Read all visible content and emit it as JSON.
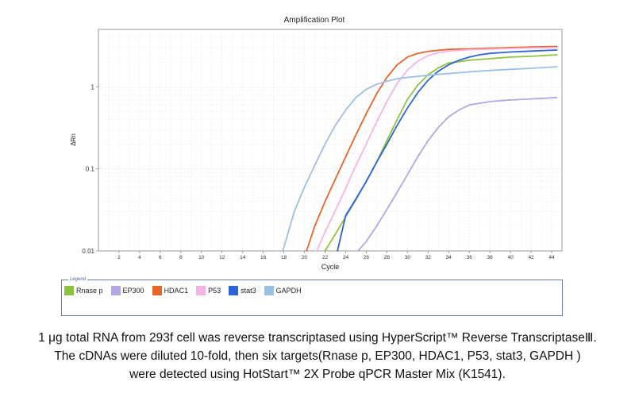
{
  "chart_data": {
    "type": "line",
    "title": "Amplification Plot",
    "xlabel": "Cycle",
    "ylabel": "ΔRn",
    "yscale": "log",
    "xlim": [
      0,
      45
    ],
    "ylim": [
      0.01,
      5
    ],
    "x_ticks": [
      "2",
      "4",
      "6",
      "8",
      "10",
      "12",
      "14",
      "16",
      "18",
      "20",
      "22",
      "24",
      "26",
      "28",
      "30",
      "32",
      "34",
      "36",
      "38",
      "40",
      "42",
      "44"
    ],
    "y_ticks": [
      {
        "value": 0.01,
        "label": "0.01"
      },
      {
        "value": 0.1,
        "label": "0.1"
      },
      {
        "value": 1,
        "label": "1"
      }
    ],
    "series": [
      {
        "name": "Rnase p",
        "color": "#8dc43f",
        "x": [
          22,
          23,
          24,
          25,
          26,
          27,
          28,
          29,
          30,
          31,
          32,
          33,
          34,
          36,
          38,
          40,
          42,
          44.5
        ],
        "y": [
          0.01,
          0.016,
          0.026,
          0.042,
          0.07,
          0.12,
          0.22,
          0.4,
          0.7,
          1.05,
          1.4,
          1.7,
          1.95,
          2.1,
          2.2,
          2.3,
          2.35,
          2.45
        ]
      },
      {
        "name": "EP300",
        "color": "#b3a6e3",
        "x": [
          25.2,
          26,
          27,
          28,
          29,
          30,
          31,
          32,
          33,
          34,
          35,
          36,
          38,
          40,
          42,
          44.5
        ],
        "y": [
          0.01,
          0.013,
          0.02,
          0.032,
          0.052,
          0.085,
          0.14,
          0.22,
          0.32,
          0.43,
          0.52,
          0.6,
          0.66,
          0.69,
          0.71,
          0.74
        ]
      },
      {
        "name": "HDAC1",
        "color": "#e8652a",
        "x": [
          20.2,
          21,
          22,
          23,
          24,
          25,
          26,
          27,
          28,
          29,
          30,
          31,
          32,
          33,
          34,
          36,
          38,
          40,
          42,
          44.5
        ],
        "y": [
          0.01,
          0.02,
          0.04,
          0.075,
          0.14,
          0.26,
          0.47,
          0.82,
          1.3,
          1.85,
          2.3,
          2.55,
          2.7,
          2.78,
          2.85,
          2.9,
          2.95,
          3.0,
          3.05,
          3.1
        ]
      },
      {
        "name": "P53",
        "color": "#f4b4e4",
        "x": [
          21.2,
          22,
          23,
          24,
          25,
          26,
          27,
          28,
          29,
          30,
          31,
          32,
          33,
          34,
          36,
          38,
          40,
          42,
          44.5
        ],
        "y": [
          0.01,
          0.017,
          0.031,
          0.058,
          0.11,
          0.2,
          0.37,
          0.66,
          1.1,
          1.6,
          2.05,
          2.4,
          2.6,
          2.72,
          2.82,
          2.88,
          2.93,
          2.97,
          3.0
        ]
      },
      {
        "name": "stat3",
        "color": "#2f63d8",
        "x": [
          23.2,
          24,
          25,
          26,
          27,
          28,
          29,
          30,
          31,
          32,
          33,
          34,
          35,
          36,
          37,
          38,
          40,
          42,
          44.5
        ],
        "y": [
          0.01,
          0.027,
          0.043,
          0.07,
          0.12,
          0.2,
          0.34,
          0.55,
          0.85,
          1.2,
          1.55,
          1.85,
          2.1,
          2.3,
          2.45,
          2.55,
          2.65,
          2.72,
          2.8
        ]
      },
      {
        "name": "GAPDH",
        "color": "#9bc0e2",
        "x": [
          17.9,
          18.5,
          19,
          20,
          21,
          22,
          23,
          24,
          25,
          26,
          27,
          28,
          29,
          30,
          32,
          34,
          36,
          38,
          40,
          42,
          44.5
        ],
        "y": [
          0.01,
          0.018,
          0.03,
          0.06,
          0.11,
          0.2,
          0.34,
          0.52,
          0.74,
          0.93,
          1.07,
          1.17,
          1.25,
          1.3,
          1.38,
          1.45,
          1.52,
          1.58,
          1.63,
          1.68,
          1.75
        ]
      }
    ]
  },
  "legend": {
    "title": "Legend",
    "items": [
      {
        "label": "Rnase p",
        "color": "#8dc43f"
      },
      {
        "label": "EP300",
        "color": "#b3a6e3"
      },
      {
        "label": "HDAC1",
        "color": "#e8652a"
      },
      {
        "label": "P53",
        "color": "#f4b4e4"
      },
      {
        "label": "stat3",
        "color": "#2f63d8"
      },
      {
        "label": "GAPDH",
        "color": "#9bc0e2"
      }
    ]
  },
  "caption": {
    "line1": "1 μg total RNA from 293f cell was reverse transcriptased using HyperScript™ Reverse TranscriptaseⅢ.",
    "line2": "The cDNAs were diluted 10-fold, then six targets(Rnase p, EP300, HDAC1, P53, stat3, GAPDH )",
    "line3": "were detected using HotStart™ 2X Probe qPCR Master Mix (K1541)."
  }
}
